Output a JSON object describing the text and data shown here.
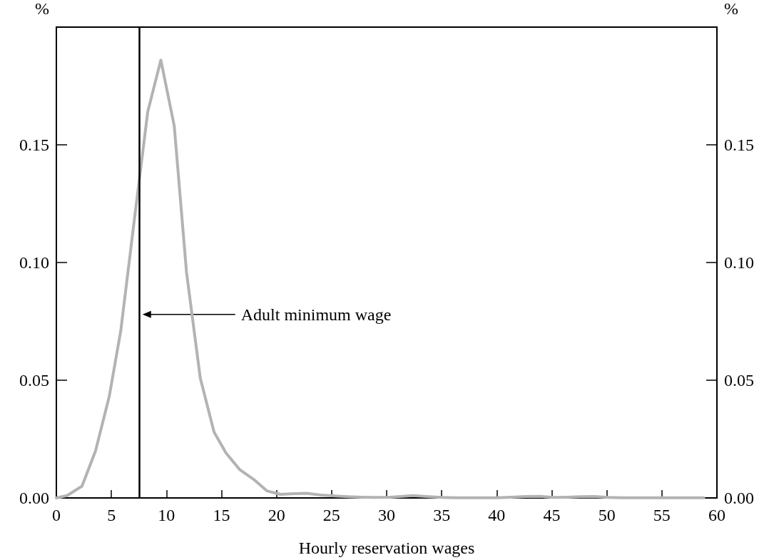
{
  "chart_data": {
    "type": "line",
    "xlabel": "Hourly reservation wages",
    "ylabel": "%",
    "y2label": "%",
    "x": [
      0,
      0.97,
      2.33,
      3.56,
      4.8,
      5.85,
      7.08,
      8.3,
      9.49,
      10.71,
      11.82,
      13.07,
      14.32,
      15.42,
      16.66,
      17.89,
      19.12,
      20.35,
      21.58,
      22.75,
      24.04,
      25.3,
      26.5,
      27.8,
      29.0,
      30.3,
      31.5,
      32.4,
      33.6,
      35.0,
      36.3,
      37.6,
      38.8,
      40.0,
      41.3,
      42.6,
      43.9,
      45.2,
      46.4,
      47.6,
      48.9,
      50.2,
      51.4,
      52.7,
      54.0,
      55.3,
      56.5,
      57.7,
      58.8
    ],
    "series": [
      {
        "color": "#b3b3b3",
        "values": [
          0,
          0.001,
          0.005,
          0.02,
          0.043,
          0.071,
          0.118,
          0.164,
          0.186,
          0.158,
          0.096,
          0.051,
          0.028,
          0.019,
          0.012,
          0.008,
          0.003,
          0.0015,
          0.0018,
          0.002,
          0.0012,
          0.0008,
          0.0005,
          0.0003,
          0.0002,
          0.0003,
          0.0007,
          0.001,
          0.0006,
          0.0002,
          0.0001,
          0.0001,
          0.0001,
          0.0001,
          0.0003,
          0.0006,
          0.0007,
          0.0002,
          0.0003,
          0.0005,
          0.0006,
          0.0002,
          0.0001,
          0.0001,
          0.0001,
          0.0001,
          0.0001,
          0.0001,
          0.0001
        ]
      }
    ],
    "xlim": [
      0,
      60
    ],
    "xticks": [
      0,
      5,
      10,
      15,
      20,
      25,
      30,
      35,
      40,
      45,
      50,
      55,
      60
    ],
    "ylim": [
      0,
      0.2
    ],
    "yticks": [
      {
        "value": 0,
        "label": "0.00"
      },
      {
        "value": 0.05,
        "label": "0.05"
      },
      {
        "value": 0.1,
        "label": "0.10"
      },
      {
        "value": 0.15,
        "label": "0.15"
      }
    ],
    "y2lim": [
      0,
      0.2
    ],
    "y2ticks": [
      {
        "value": 0,
        "label": "0.00"
      },
      {
        "value": 0.05,
        "label": "0.05"
      },
      {
        "value": 0.1,
        "label": "0.10"
      },
      {
        "value": 0.15,
        "label": "0.15"
      }
    ],
    "ref_lines": [
      {
        "axis": "x",
        "value": 7.5,
        "color": "#000000",
        "label": "Adult minimum wage"
      }
    ],
    "grid": false,
    "marker": "none",
    "line_style": "solid"
  }
}
